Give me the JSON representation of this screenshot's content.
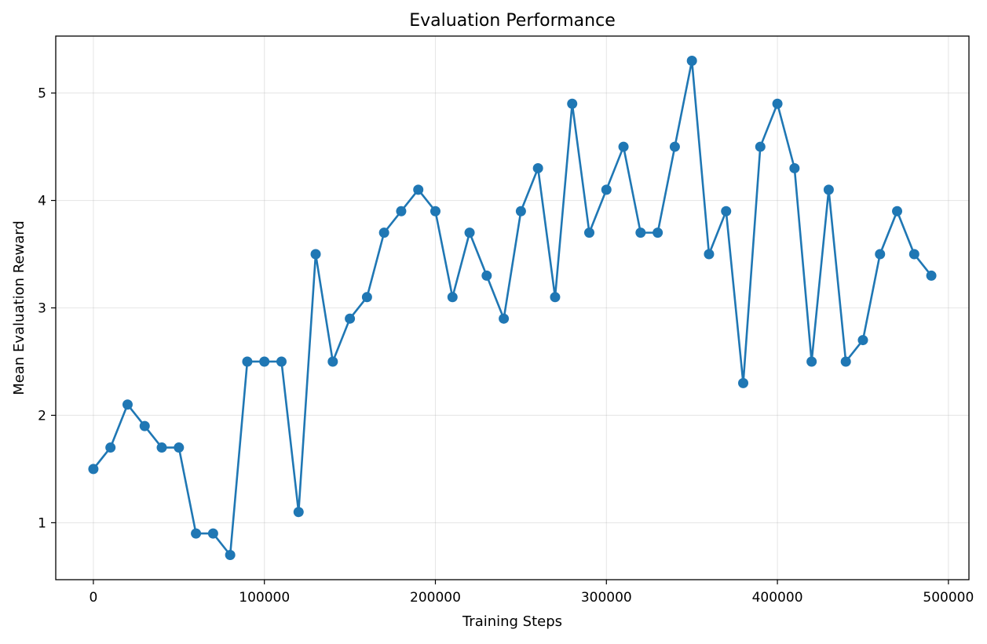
{
  "chart_data": {
    "type": "line",
    "title": "Evaluation Performance",
    "xlabel": "Training Steps",
    "ylabel": "Mean Evaluation Reward",
    "xlim": [
      -22000,
      512000
    ],
    "ylim": [
      0.47,
      5.53
    ],
    "xticks": [
      0,
      100000,
      200000,
      300000,
      400000,
      500000
    ],
    "xtick_labels": [
      "0",
      "100000",
      "200000",
      "300000",
      "400000",
      "500000"
    ],
    "yticks": [
      1,
      2,
      3,
      4,
      5
    ],
    "ytick_labels": [
      "1",
      "2",
      "3",
      "4",
      "5"
    ],
    "grid": true,
    "legend": "none",
    "marker": "circle",
    "color": "#1f77b4",
    "series": [
      {
        "x": [
          0,
          10000,
          20000,
          30000,
          40000,
          50000,
          60000,
          70000,
          80000,
          90000,
          100000,
          110000,
          120000,
          130000,
          140000,
          150000,
          160000,
          170000,
          180000,
          190000,
          200000,
          210000,
          220000,
          230000,
          240000,
          250000,
          260000,
          270000,
          280000,
          290000,
          300000,
          310000,
          320000,
          330000,
          340000,
          350000,
          360000,
          370000,
          380000,
          390000,
          400000,
          410000,
          420000,
          430000,
          440000,
          450000,
          460000,
          470000,
          480000,
          490000
        ],
        "y": [
          1.5,
          1.7,
          2.1,
          1.9,
          1.7,
          1.7,
          0.9,
          0.9,
          0.7,
          2.5,
          2.5,
          2.5,
          1.1,
          3.5,
          2.5,
          2.9,
          3.1,
          3.7,
          3.9,
          4.1,
          3.9,
          3.1,
          3.7,
          3.3,
          2.9,
          3.9,
          4.3,
          3.1,
          4.9,
          3.7,
          4.1,
          4.5,
          3.7,
          3.7,
          4.5,
          5.3,
          3.5,
          3.9,
          2.3,
          4.5,
          4.9,
          4.3,
          2.5,
          4.1,
          2.5,
          2.7,
          3.5,
          3.9,
          3.5,
          3.3
        ]
      }
    ]
  }
}
